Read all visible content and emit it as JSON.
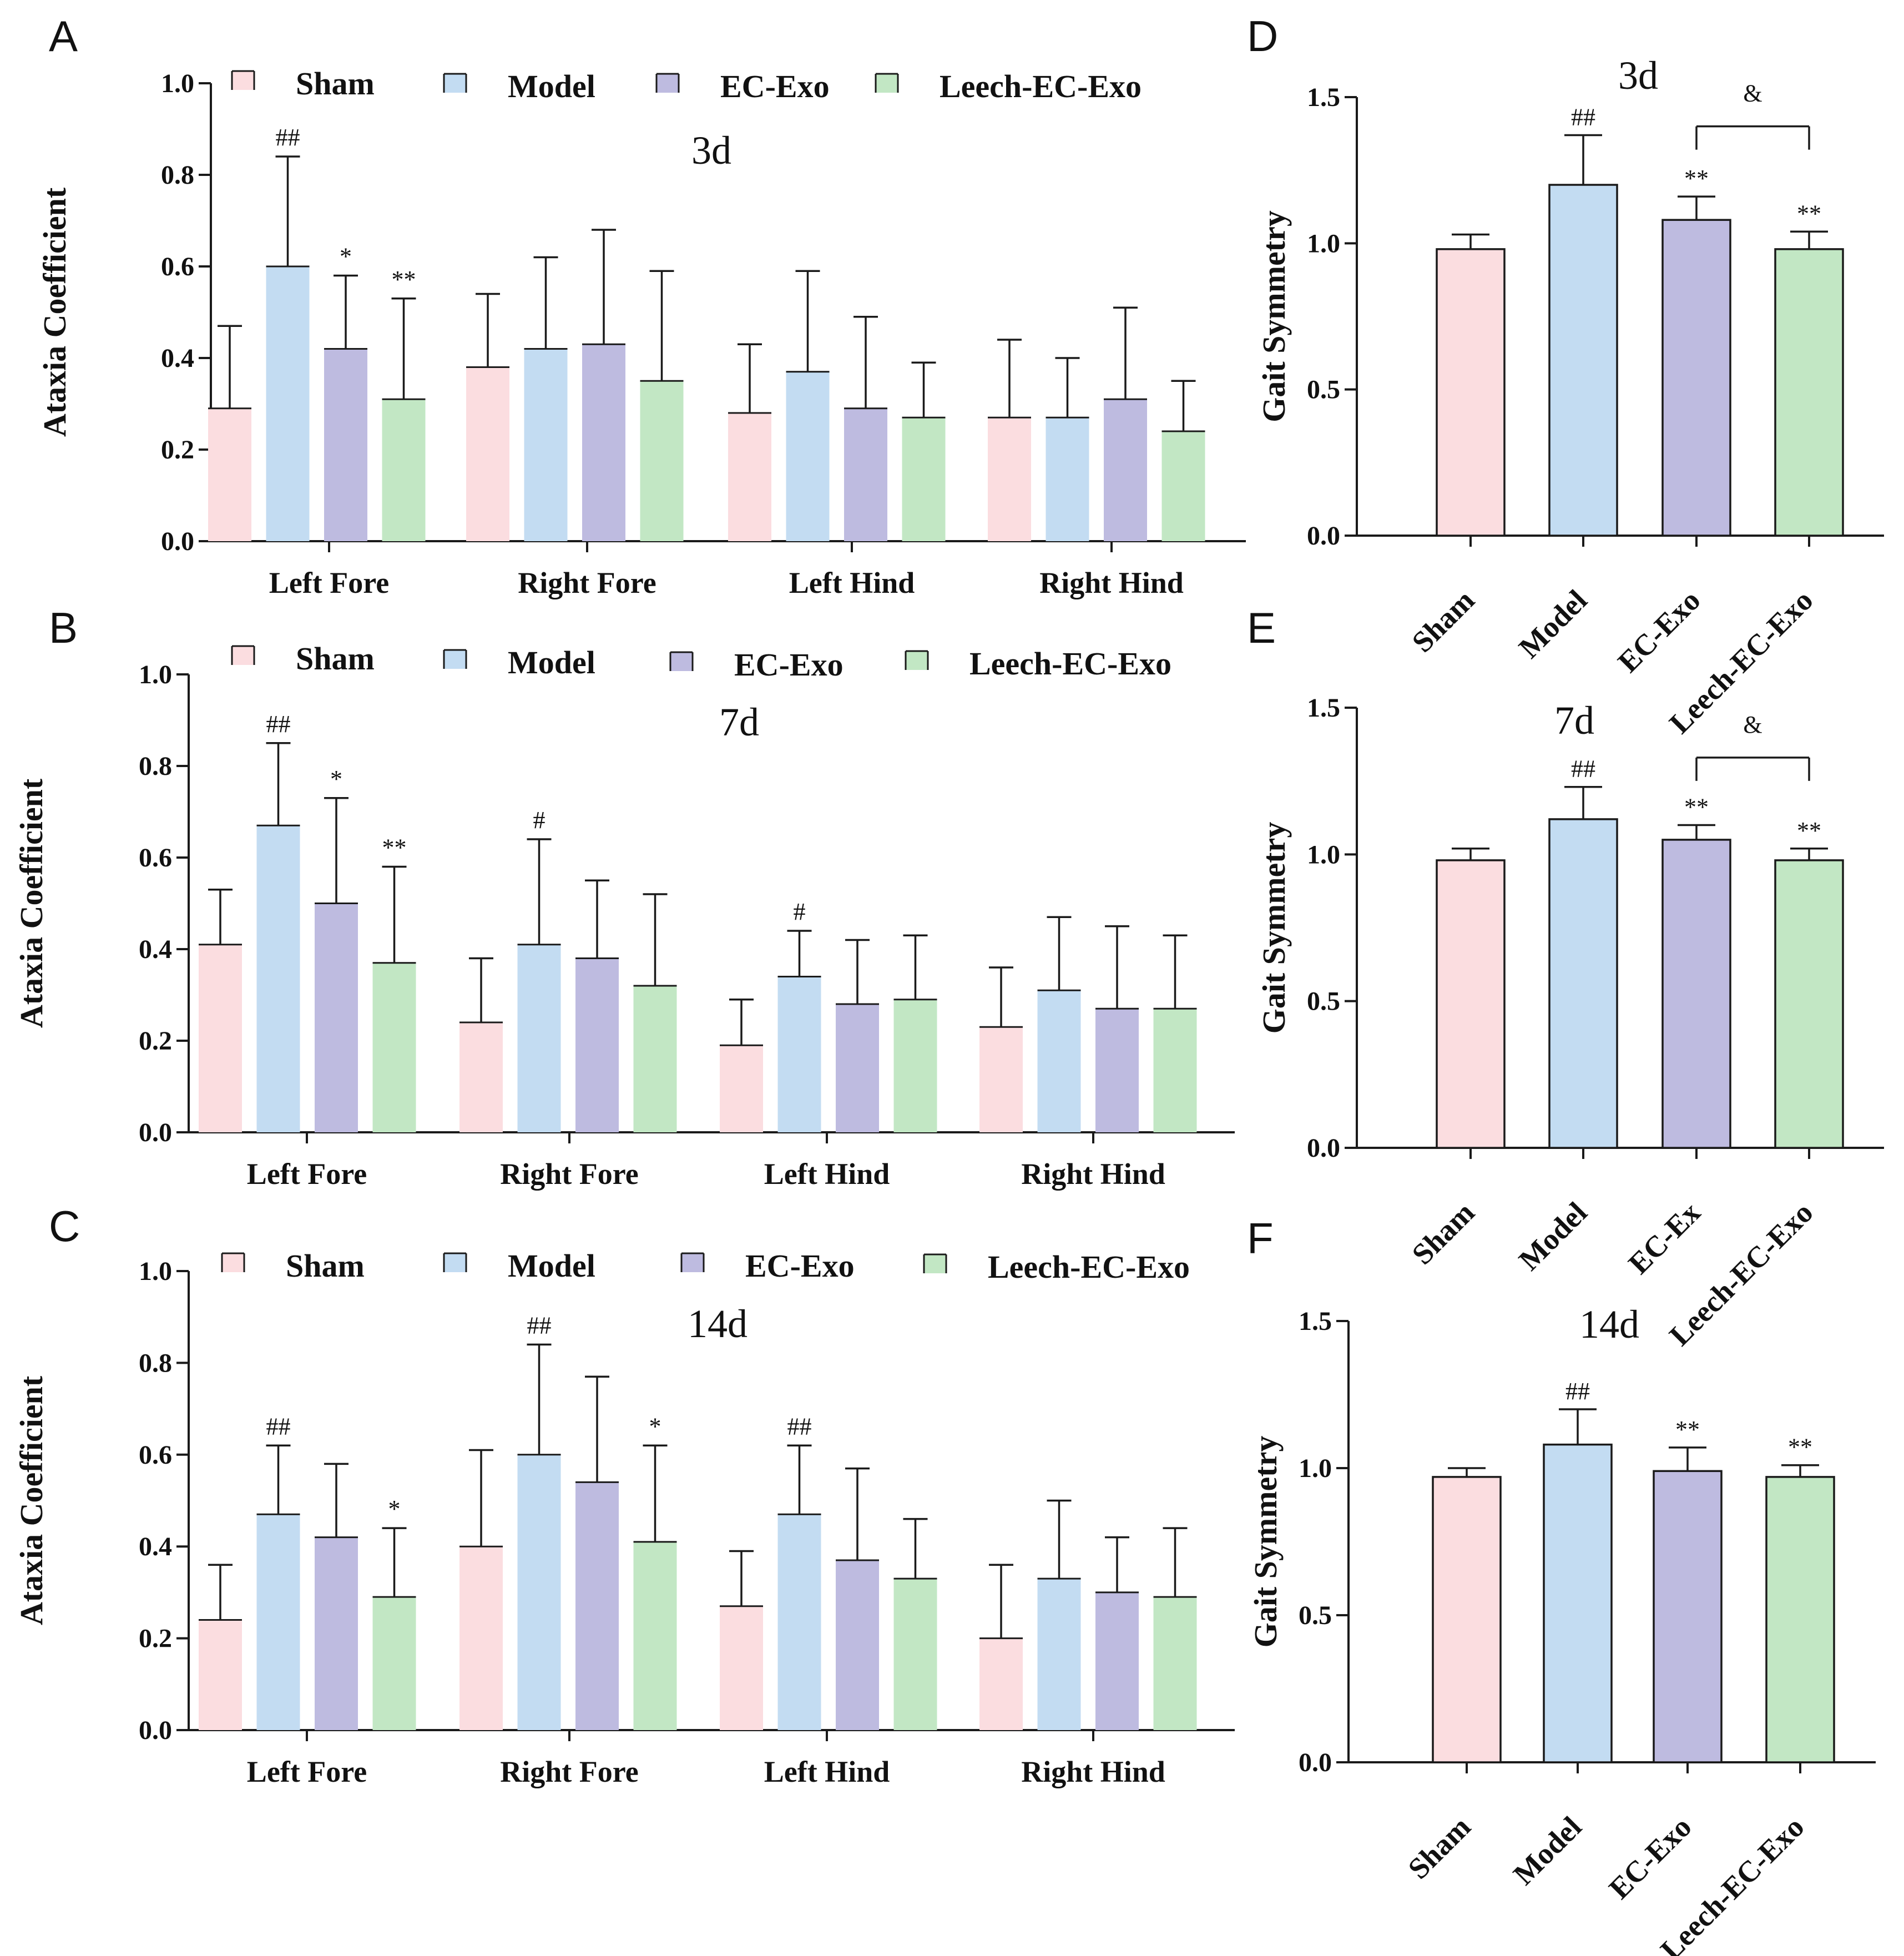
{
  "colors": {
    "Sham": "#fbdde0",
    "Model": "#c3dcf2",
    "EC-Exo": "#bebbe0",
    "Leech-EC-Exo": "#c2e7c4",
    "line": "#1a1a1a"
  },
  "chart_data": [
    {
      "id": "A",
      "type": "bar",
      "panel_label": "A",
      "title": "3d",
      "ylabel": "Ataxia Coefficient",
      "ylim": [
        0,
        1.0
      ],
      "yticks": [
        "0.0",
        "0.2",
        "0.4",
        "0.6",
        "0.8",
        "1.0"
      ],
      "categories": [
        "Left Fore",
        "Right Fore",
        "Left Hind",
        "Right Hind"
      ],
      "legend": [
        "Sham",
        "Model",
        "EC-Exo",
        "Leech-EC-Exo"
      ],
      "series": [
        {
          "name": "Sham",
          "values": [
            0.29,
            0.38,
            0.28,
            0.27
          ],
          "errors": [
            0.18,
            0.16,
            0.15,
            0.17
          ]
        },
        {
          "name": "Model",
          "values": [
            0.6,
            0.42,
            0.37,
            0.27
          ],
          "errors": [
            0.24,
            0.2,
            0.22,
            0.13
          ]
        },
        {
          "name": "EC-Exo",
          "values": [
            0.42,
            0.43,
            0.29,
            0.31
          ],
          "errors": [
            0.16,
            0.25,
            0.2,
            0.2
          ]
        },
        {
          "name": "Leech-EC-Exo",
          "values": [
            0.31,
            0.35,
            0.27,
            0.24
          ],
          "errors": [
            0.22,
            0.24,
            0.12,
            0.11
          ]
        }
      ],
      "annotations": [
        {
          "category": 0,
          "series": 1,
          "text": "##"
        },
        {
          "category": 0,
          "series": 2,
          "text": "*"
        },
        {
          "category": 0,
          "series": 3,
          "text": "**"
        }
      ]
    },
    {
      "id": "B",
      "type": "bar",
      "panel_label": "B",
      "title": "7d",
      "ylabel": "Ataxia Coefficient",
      "ylim": [
        0,
        1.0
      ],
      "yticks": [
        "0.0",
        "0.2",
        "0.4",
        "0.6",
        "0.8",
        "1.0"
      ],
      "categories": [
        "Left Fore",
        "Right Fore",
        "Left Hind",
        "Right Hind"
      ],
      "legend": [
        "Sham",
        "Model",
        "EC-Exo",
        "Leech-EC-Exo"
      ],
      "series": [
        {
          "name": "Sham",
          "values": [
            0.41,
            0.24,
            0.19,
            0.23
          ],
          "errors": [
            0.12,
            0.14,
            0.1,
            0.13
          ]
        },
        {
          "name": "Model",
          "values": [
            0.67,
            0.41,
            0.34,
            0.31
          ],
          "errors": [
            0.18,
            0.23,
            0.1,
            0.16
          ]
        },
        {
          "name": "EC-Exo",
          "values": [
            0.5,
            0.38,
            0.28,
            0.27
          ],
          "errors": [
            0.23,
            0.17,
            0.14,
            0.18
          ]
        },
        {
          "name": "Leech-EC-Exo",
          "values": [
            0.37,
            0.32,
            0.29,
            0.27
          ],
          "errors": [
            0.21,
            0.2,
            0.14,
            0.16
          ]
        }
      ],
      "annotations": [
        {
          "category": 0,
          "series": 1,
          "text": "##"
        },
        {
          "category": 0,
          "series": 2,
          "text": "*"
        },
        {
          "category": 0,
          "series": 3,
          "text": "**"
        },
        {
          "category": 1,
          "series": 1,
          "text": "#"
        },
        {
          "category": 2,
          "series": 1,
          "text": "#"
        }
      ]
    },
    {
      "id": "C",
      "type": "bar",
      "panel_label": "C",
      "title": "14d",
      "ylabel": "Ataxia Coefficient",
      "ylim": [
        0,
        1.0
      ],
      "yticks": [
        "0.0",
        "0.2",
        "0.4",
        "0.6",
        "0.8",
        "1.0"
      ],
      "categories": [
        "Left Fore",
        "Right Fore",
        "Left Hind",
        "Right Hind"
      ],
      "legend": [
        "Sham",
        "Model",
        "EC-Exo",
        "Leech-EC-Exo"
      ],
      "series": [
        {
          "name": "Sham",
          "values": [
            0.24,
            0.4,
            0.27,
            0.2
          ],
          "errors": [
            0.12,
            0.21,
            0.12,
            0.16
          ]
        },
        {
          "name": "Model",
          "values": [
            0.47,
            0.6,
            0.47,
            0.33
          ],
          "errors": [
            0.15,
            0.24,
            0.15,
            0.17
          ]
        },
        {
          "name": "EC-Exo",
          "values": [
            0.42,
            0.54,
            0.37,
            0.3
          ],
          "errors": [
            0.16,
            0.23,
            0.2,
            0.12
          ]
        },
        {
          "name": "Leech-EC-Exo",
          "values": [
            0.29,
            0.41,
            0.33,
            0.29
          ],
          "errors": [
            0.15,
            0.21,
            0.13,
            0.15
          ]
        }
      ],
      "annotations": [
        {
          "category": 0,
          "series": 1,
          "text": "##"
        },
        {
          "category": 0,
          "series": 3,
          "text": "*"
        },
        {
          "category": 1,
          "series": 1,
          "text": "##"
        },
        {
          "category": 1,
          "series": 3,
          "text": "*"
        },
        {
          "category": 2,
          "series": 1,
          "text": "##"
        }
      ]
    },
    {
      "id": "D",
      "type": "bar",
      "panel_label": "D",
      "title": "3d",
      "ylabel": "Gait Symmetry",
      "ylim": [
        0,
        1.5
      ],
      "yticks": [
        "0.0",
        "0.5",
        "1.0",
        "1.5"
      ],
      "categories": [
        "Sham",
        "Model",
        "EC-Exo",
        "Leech-EC-Exo"
      ],
      "values": [
        0.98,
        1.2,
        1.08,
        0.98
      ],
      "errors": [
        0.05,
        0.17,
        0.08,
        0.06
      ],
      "annotations": [
        {
          "bar": 1,
          "text": "##"
        },
        {
          "bar": 2,
          "text": "**"
        },
        {
          "bar": 3,
          "text": "**"
        }
      ],
      "bracket": {
        "from": 2,
        "to": 3,
        "text": "&",
        "level": 1.4
      }
    },
    {
      "id": "E",
      "type": "bar",
      "panel_label": "E",
      "title": "7d",
      "ylabel": "Gait Symmetry",
      "ylim": [
        0,
        1.5
      ],
      "yticks": [
        "0.0",
        "0.5",
        "1.0",
        "1.5"
      ],
      "categories": [
        "Sham",
        "Model",
        "EC-Ex",
        "Leech-EC-Exo"
      ],
      "values": [
        0.98,
        1.12,
        1.05,
        0.98
      ],
      "errors": [
        0.04,
        0.11,
        0.05,
        0.04
      ],
      "annotations": [
        {
          "bar": 1,
          "text": "##"
        },
        {
          "bar": 2,
          "text": "**"
        },
        {
          "bar": 3,
          "text": "**"
        }
      ],
      "bracket": {
        "from": 2,
        "to": 3,
        "text": "&",
        "level": 1.33
      }
    },
    {
      "id": "F",
      "type": "bar",
      "panel_label": "F",
      "title": "14d",
      "ylabel": "Gait Symmetry",
      "ylim": [
        0,
        1.5
      ],
      "yticks": [
        "0.0",
        "0.5",
        "1.0",
        "1.5"
      ],
      "categories": [
        "Sham",
        "Model",
        "EC-Exo",
        "Leech-EC-Exo"
      ],
      "values": [
        0.97,
        1.08,
        0.99,
        0.97
      ],
      "errors": [
        0.03,
        0.12,
        0.08,
        0.04
      ],
      "annotations": [
        {
          "bar": 1,
          "text": "##"
        },
        {
          "bar": 2,
          "text": "**"
        },
        {
          "bar": 3,
          "text": "**"
        }
      ]
    }
  ]
}
